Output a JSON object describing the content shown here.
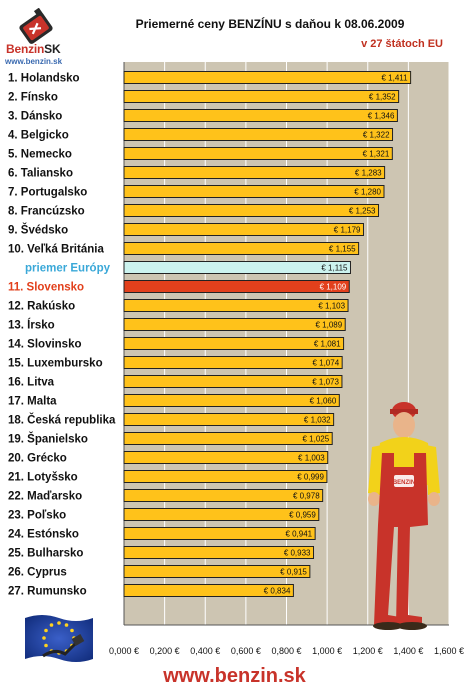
{
  "header": {
    "logo_text": "Benzin",
    "logo_suffix": "SK",
    "logo_url": "www.benzin.sk"
  },
  "footer": {
    "url": "www.benzin.sk"
  },
  "colors": {
    "bar": "#ffc21a",
    "bar_highlight": "#e2401c",
    "bar_average": "#ccf3ef",
    "plot_background": "#cdc5b2",
    "label_highlight": "#e2401c",
    "label_average": "#3aa8d8",
    "gridline": "#ffffff"
  },
  "chart_data": {
    "type": "bar",
    "orientation": "horizontal",
    "title": "Priemerné ceny BENZÍNU s daňou k 08.06.2009",
    "subtitle": "v 27 štátoch EU",
    "xlim": [
      0,
      1.6
    ],
    "xticks": [
      "0,000 €",
      "0,200 €",
      "0,400 €",
      "0,600 €",
      "0,800 €",
      "1,000 €",
      "1,200 €",
      "1,400 €",
      "1,600 €"
    ],
    "grid": true,
    "legend": "none",
    "categories": [
      "1. Holandsko",
      "2. Fínsko",
      "3. Dánsko",
      "4. Belgicko",
      "5. Nemecko",
      "6. Taliansko",
      "7. Portugalsko",
      "8. Francúzsko",
      "9. Švédsko",
      "10. Veľká Británia",
      "priemer Európy",
      "11. Slovensko",
      "12. Rakúsko",
      "13. Írsko",
      "14. Slovinsko",
      "15. Luxembursko",
      "16. Litva",
      "17. Malta",
      "18. Česká republika",
      "19. Španielsko",
      "20. Grécko",
      "21. Lotyšsko",
      "22. Maďarsko",
      "23. Poľsko",
      "24. Estónsko",
      "25. Bulharsko",
      "26. Cyprus",
      "27. Rumunsko"
    ],
    "values": [
      1.411,
      1.352,
      1.346,
      1.322,
      1.321,
      1.283,
      1.28,
      1.253,
      1.179,
      1.155,
      1.115,
      1.109,
      1.103,
      1.089,
      1.081,
      1.074,
      1.073,
      1.06,
      1.032,
      1.025,
      1.003,
      0.999,
      0.978,
      0.959,
      0.941,
      0.933,
      0.915,
      0.834
    ],
    "value_labels": [
      "€ 1,411",
      "€ 1,352",
      "€ 1,346",
      "€ 1,322",
      "€ 1,321",
      "€ 1,283",
      "€ 1,280",
      "€ 1,253",
      "€ 1,179",
      "€ 1,155",
      "€ 1,115",
      "€ 1,109",
      "€ 1,103",
      "€ 1,089",
      "€ 1,081",
      "€ 1,074",
      "€ 1,073",
      "€ 1,060",
      "€ 1,032",
      "€ 1,025",
      "€ 1,003",
      "€ 0,999",
      "€ 0,978",
      "€ 0,959",
      "€ 0,941",
      "€ 0,933",
      "€ 0,915",
      "€ 0,834"
    ],
    "highlight_index": 11,
    "average_index": 10
  }
}
